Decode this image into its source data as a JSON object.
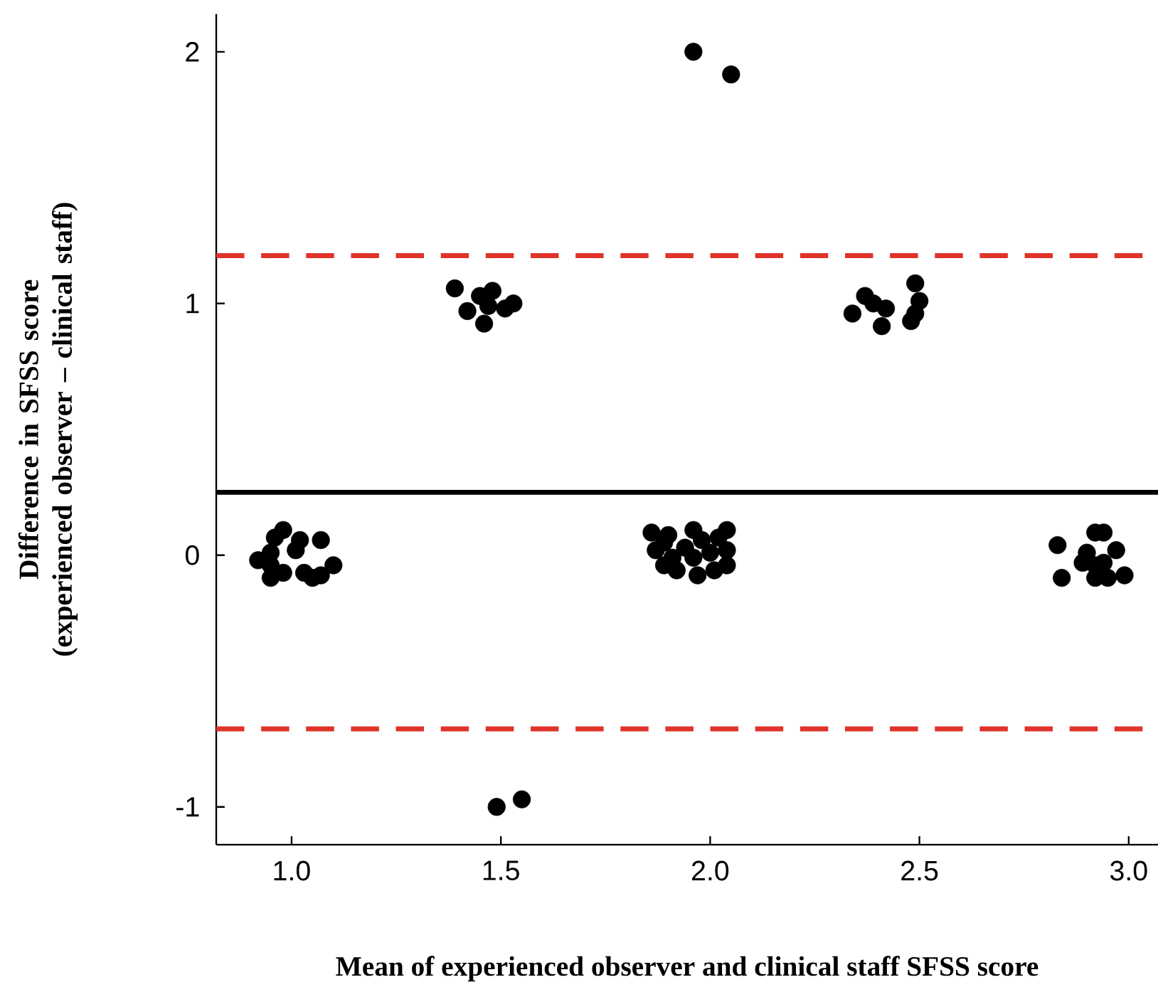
{
  "chart_data": {
    "type": "scatter",
    "xlabel": "Mean of experienced observer and clinical staff SFSS score",
    "ylabel": "Difference in SFSS score (experienced observer – clinical staff)",
    "x": [
      0.98,
      0.96,
      1.02,
      1.01,
      1.07,
      0.92,
      0.95,
      0.95,
      0.98,
      0.95,
      1.03,
      1.05,
      1.07,
      1.1,
      1.39,
      1.45,
      1.48,
      1.42,
      1.47,
      1.51,
      1.53,
      1.46,
      1.86,
      1.9,
      1.96,
      2.04,
      1.87,
      1.89,
      1.94,
      1.98,
      2.02,
      1.96,
      2.0,
      2.04,
      1.89,
      1.92,
      1.97,
      2.01,
      2.04,
      1.91,
      1.96,
      2.05,
      2.34,
      2.37,
      2.39,
      2.42,
      2.41,
      2.49,
      2.5,
      2.49,
      2.48,
      2.83,
      2.92,
      2.94,
      2.97,
      2.9,
      2.89,
      2.92,
      2.94,
      2.84,
      2.92,
      2.95,
      2.99,
      1.49,
      1.55
    ],
    "values": [
      0.1,
      0.07,
      0.06,
      0.02,
      0.06,
      -0.02,
      0.01,
      -0.04,
      -0.07,
      -0.09,
      -0.07,
      -0.09,
      -0.08,
      -0.04,
      1.06,
      1.03,
      1.05,
      0.97,
      0.99,
      0.98,
      1.0,
      0.92,
      0.09,
      0.08,
      0.1,
      0.1,
      0.02,
      0.05,
      0.03,
      0.06,
      0.07,
      -0.01,
      0.01,
      0.02,
      -0.04,
      -0.06,
      -0.08,
      -0.06,
      -0.04,
      -0.01,
      2.0,
      1.91,
      0.96,
      1.03,
      1.0,
      0.98,
      0.91,
      1.08,
      1.01,
      0.96,
      0.93,
      0.04,
      0.09,
      0.09,
      0.02,
      0.01,
      -0.03,
      -0.04,
      -0.03,
      -0.09,
      -0.09,
      -0.09,
      -0.08,
      -1.0,
      -0.97
    ],
    "color": "#000000",
    "marker": "circle",
    "xlim": [
      0.82,
      3.07
    ],
    "ylim": [
      -1.15,
      2.15
    ],
    "xticks": [
      {
        "value": 1.0,
        "label": "1.0"
      },
      {
        "value": 1.5,
        "label": "1.5"
      },
      {
        "value": 2.0,
        "label": "2.0"
      },
      {
        "value": 2.5,
        "label": "2.5"
      },
      {
        "value": 3.0,
        "label": "3.0"
      }
    ],
    "yticks": [
      -1,
      0,
      1,
      2
    ],
    "ref_lines": [
      {
        "axis": "y",
        "value": 0.25,
        "color": "#000000",
        "line_style": "solid"
      },
      {
        "axis": "y",
        "value": 1.19,
        "color": "#e0332a",
        "line_style": "dashed"
      },
      {
        "axis": "y",
        "value": -0.69,
        "color": "#e0332a",
        "line_style": "dashed"
      }
    ],
    "grid": false
  }
}
